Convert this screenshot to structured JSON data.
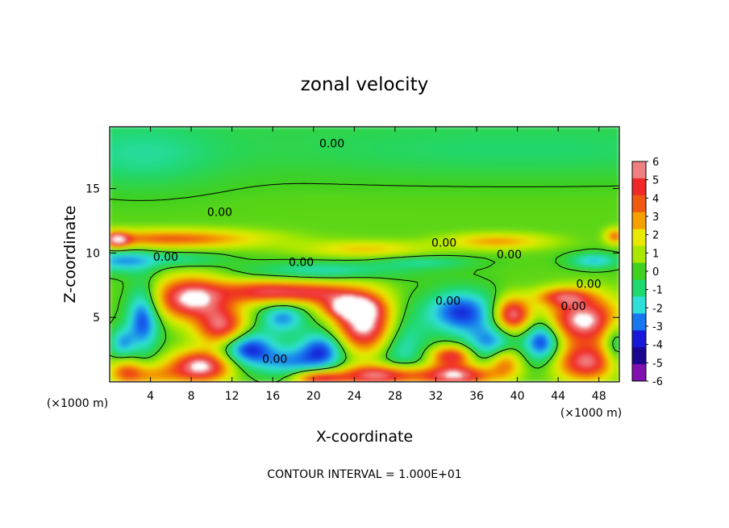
{
  "chart_data": {
    "type": "heatmap",
    "title": "zonal velocity",
    "xlabel": "X-coordinate",
    "ylabel": "Z-coordinate",
    "x_unit_left": "(×1000 m)",
    "x_unit_right": "(×1000 m)",
    "footer": "CONTOUR INTERVAL = 1.000E+01",
    "xlim": [
      0,
      50
    ],
    "ylim": [
      0,
      19.8
    ],
    "x_ticks": [
      4,
      8,
      12,
      16,
      20,
      24,
      28,
      32,
      36,
      40,
      44,
      48
    ],
    "y_ticks": [
      5,
      10,
      15
    ],
    "colorbar": {
      "levels": [
        6,
        5,
        4,
        3,
        2,
        1,
        0,
        -1,
        -2,
        -3,
        -4,
        -5,
        -6
      ],
      "colors": [
        "#f08080",
        "#f02828",
        "#f05a10",
        "#f4a000",
        "#e8e800",
        "#a8e800",
        "#40d020",
        "#20d870",
        "#30e0d8",
        "#1878f0",
        "#1818d8",
        "#1c0890",
        "#8010b0"
      ]
    },
    "contour_labels": [
      {
        "text": "0.00",
        "x": 21.8,
        "y": 18.5
      },
      {
        "text": "0.00",
        "x": 10.8,
        "y": 13.2
      },
      {
        "text": "0.00",
        "x": 5.5,
        "y": 9.7
      },
      {
        "text": "0.00",
        "x": 18.8,
        "y": 9.3
      },
      {
        "text": "0.00",
        "x": 32.8,
        "y": 10.8
      },
      {
        "text": "0.00",
        "x": 39.2,
        "y": 9.9
      },
      {
        "text": "0.00",
        "x": 33.2,
        "y": 6.3
      },
      {
        "text": "0.00",
        "x": 47.0,
        "y": 7.6
      },
      {
        "text": "0.00",
        "x": 45.5,
        "y": 5.9
      },
      {
        "text": "0.00",
        "x": 16.2,
        "y": 1.8
      }
    ],
    "features": [
      {
        "x": 40,
        "y": 17.8,
        "w": 26,
        "h": 2.0,
        "v": -0.8
      },
      {
        "x": 3,
        "y": 17.4,
        "w": 8,
        "h": 2.6,
        "v": -1.2
      },
      {
        "x": 6,
        "y": 11.1,
        "w": 9,
        "h": 0.7,
        "v": 3.8
      },
      {
        "x": 0.8,
        "y": 11.0,
        "w": 1.2,
        "h": 0.6,
        "v": 4.2
      },
      {
        "x": 25,
        "y": 10.3,
        "w": 6,
        "h": 0.6,
        "v": 2.2
      },
      {
        "x": 38,
        "y": 10.9,
        "w": 5,
        "h": 0.6,
        "v": 2.8
      },
      {
        "x": 49.6,
        "y": 11.3,
        "w": 1.0,
        "h": 0.6,
        "v": 3.5
      },
      {
        "x": 1.2,
        "y": 9.4,
        "w": 3.5,
        "h": 0.9,
        "v": -2.8
      },
      {
        "x": 7.5,
        "y": 9.5,
        "w": 4,
        "h": 0.6,
        "v": -1.5
      },
      {
        "x": 21,
        "y": 8.6,
        "w": 8,
        "h": 0.7,
        "v": -2.0
      },
      {
        "x": 31,
        "y": 9.3,
        "w": 5,
        "h": 0.5,
        "v": -1.5
      },
      {
        "x": 47.5,
        "y": 9.4,
        "w": 2.5,
        "h": 0.6,
        "v": -2.5
      },
      {
        "x": 8,
        "y": 6.5,
        "w": 3.6,
        "h": 1.6,
        "v": 6.5
      },
      {
        "x": 11.0,
        "y": 4.2,
        "w": 2.4,
        "h": 1.5,
        "v": 5.5
      },
      {
        "x": 15,
        "y": 7.0,
        "w": 4,
        "h": 0.9,
        "v": 4.5
      },
      {
        "x": 20.5,
        "y": 6.9,
        "w": 4,
        "h": 0.9,
        "v": 4.0
      },
      {
        "x": 25,
        "y": 4.5,
        "w": 3,
        "h": 2.2,
        "v": 7.0
      },
      {
        "x": 17,
        "y": 5.0,
        "w": 2.2,
        "h": 1.2,
        "v": -3.0
      },
      {
        "x": 23.5,
        "y": 5.8,
        "w": 2.5,
        "h": 0.8,
        "v": 5.0
      },
      {
        "x": 3.3,
        "y": 5.0,
        "w": 1.6,
        "h": 2.6,
        "v": -4.0
      },
      {
        "x": 1.2,
        "y": 3.0,
        "w": 1.2,
        "h": 1.2,
        "v": -2.5
      },
      {
        "x": 9,
        "y": 1.2,
        "w": 3,
        "h": 1.2,
        "v": 6.5
      },
      {
        "x": 13.3,
        "y": 2.6,
        "w": 2.8,
        "h": 1.4,
        "v": -4.5
      },
      {
        "x": 17.5,
        "y": 1.5,
        "w": 3,
        "h": 1.2,
        "v": -2.5
      },
      {
        "x": 21,
        "y": 2.5,
        "w": 2.4,
        "h": 1.6,
        "v": -4.0
      },
      {
        "x": 28.5,
        "y": 3.0,
        "w": 2.5,
        "h": 2.6,
        "v": -2.5
      },
      {
        "x": 26.5,
        "y": 0.5,
        "w": 4,
        "h": 0.8,
        "v": 6.0
      },
      {
        "x": 20.5,
        "y": 0.3,
        "w": 2.5,
        "h": 0.6,
        "v": 5.0
      },
      {
        "x": 34.5,
        "y": 5.4,
        "w": 3.4,
        "h": 1.7,
        "v": -4.0
      },
      {
        "x": 37.5,
        "y": 3.0,
        "w": 2.5,
        "h": 1.4,
        "v": -3.0
      },
      {
        "x": 33.5,
        "y": 2.0,
        "w": 2,
        "h": 0.8,
        "v": 5.0
      },
      {
        "x": 34,
        "y": 0.5,
        "w": 3.5,
        "h": 0.8,
        "v": 6.0
      },
      {
        "x": 39.5,
        "y": 5.2,
        "w": 1.7,
        "h": 1.3,
        "v": 6.0
      },
      {
        "x": 38.8,
        "y": 1.5,
        "w": 1.6,
        "h": 1.2,
        "v": 3.5
      },
      {
        "x": 42.5,
        "y": 3.2,
        "w": 1.8,
        "h": 1.6,
        "v": -4.5
      },
      {
        "x": 46.5,
        "y": 4.8,
        "w": 3.6,
        "h": 1.8,
        "v": 6.5
      },
      {
        "x": 44.5,
        "y": 6.6,
        "w": 2.6,
        "h": 0.7,
        "v": 4.0
      },
      {
        "x": 46.8,
        "y": 1.5,
        "w": 3,
        "h": 1.4,
        "v": 5.5
      },
      {
        "x": 49.5,
        "y": 3.0,
        "w": 1.2,
        "h": 2.0,
        "v": -2.5
      },
      {
        "x": 4.0,
        "y": 0.5,
        "w": 3,
        "h": 0.9,
        "v": 2.5
      },
      {
        "x": 1.6,
        "y": 0.8,
        "w": 1.6,
        "h": 1.0,
        "v": 3.0
      }
    ]
  }
}
